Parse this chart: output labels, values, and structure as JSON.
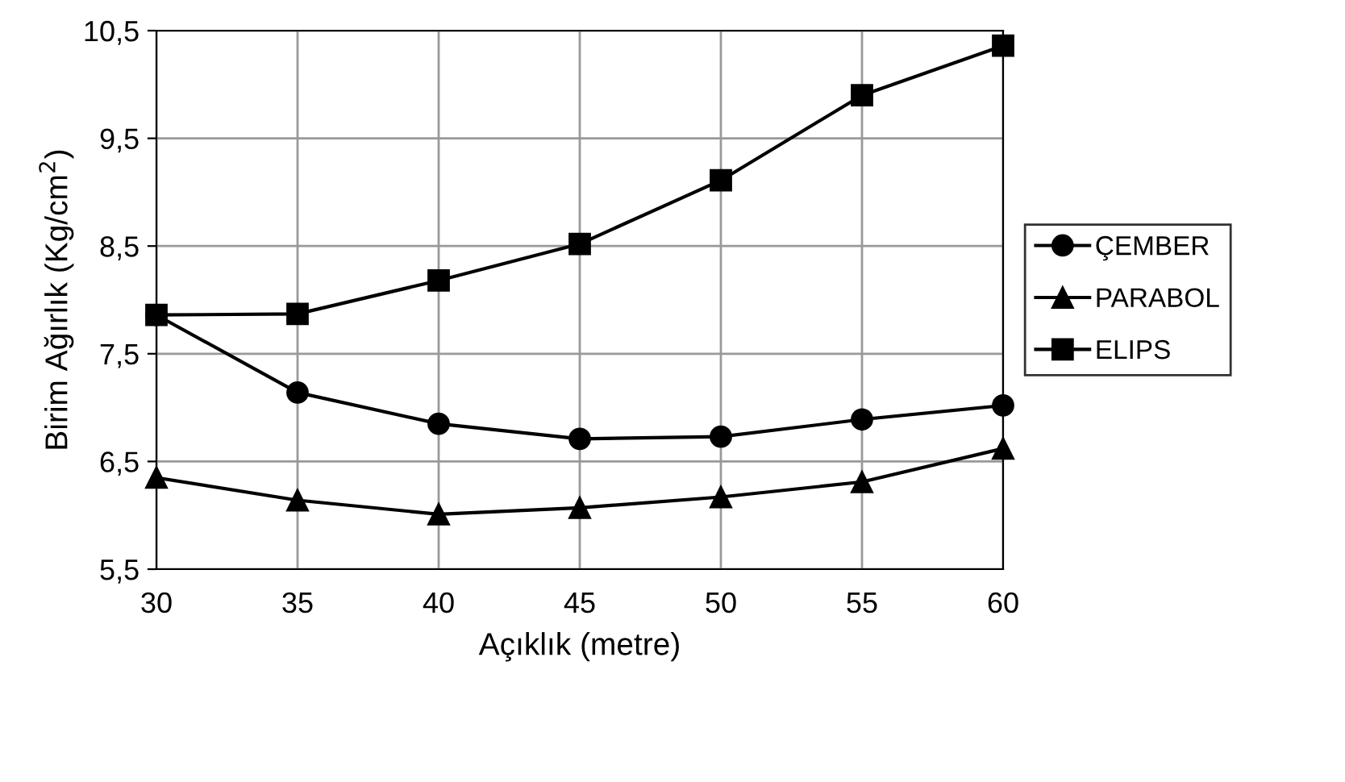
{
  "chart_data": {
    "type": "line",
    "xlabel": "Açıklık (metre)",
    "ylabel": "Birim Ağırlık (Kg/cm$^{2}$)",
    "x": [
      30,
      35,
      40,
      45,
      50,
      55,
      60
    ],
    "series": [
      {
        "name": "ÇEMBER",
        "color": "#000000",
        "marker": "circle",
        "values": [
          7.86,
          7.14,
          6.85,
          6.71,
          6.73,
          6.89,
          7.02
        ]
      },
      {
        "name": "PARABOL",
        "color": "#000000",
        "marker": "triangle",
        "values": [
          6.35,
          6.14,
          6.01,
          6.07,
          6.17,
          6.31,
          6.62
        ]
      },
      {
        "name": "ELIPS",
        "color": "#000000",
        "marker": "square",
        "values": [
          7.86,
          7.87,
          8.18,
          8.52,
          9.11,
          9.9,
          10.36
        ]
      }
    ],
    "xlim": [
      30,
      60
    ],
    "xticks": [
      30,
      35,
      40,
      45,
      50,
      55,
      60
    ],
    "ylim": [
      5.5,
      10.5
    ],
    "yticks": [
      {
        "value": 5.5,
        "label": "5,5"
      },
      {
        "value": 6.5,
        "label": "6,5"
      },
      {
        "value": 7.5,
        "label": "7,5"
      },
      {
        "value": 8.5,
        "label": "8,5"
      },
      {
        "value": 9.5,
        "label": "9,5"
      },
      {
        "value": 10.5,
        "label": "10,5"
      }
    ],
    "grid": true,
    "legend": "right",
    "line_style": "solid"
  }
}
